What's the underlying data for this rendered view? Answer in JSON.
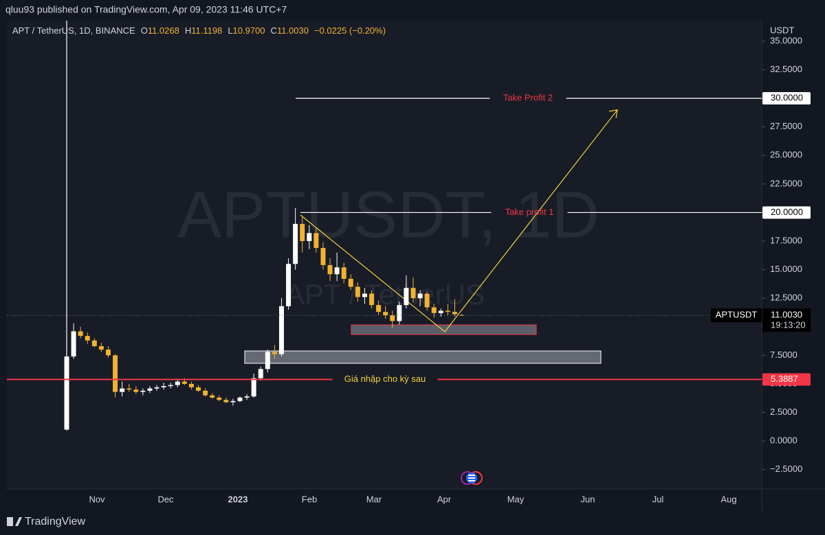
{
  "header": {
    "publisher": "qluu93 published on TradingView.com, Apr 09, 2023 11:46 UTC+7"
  },
  "chart_data": {
    "type": "candlestick",
    "symbol": "APT / TetherUS, 1D, BINANCE",
    "legend": {
      "o_label": "O",
      "o": {
        "value": 11.0268,
        "label": "11.0268"
      },
      "h_label": "H",
      "h": {
        "value": 11.1198,
        "label": "11.1198"
      },
      "l_label": "L",
      "l": {
        "value": 10.97,
        "label": "10.9700"
      },
      "c_label": "C",
      "c": {
        "value": 11.003,
        "label": "11.0030"
      },
      "change": "−0.0225 (−0.20%)"
    },
    "watermark": "APTUSDT, 1D",
    "watermark_sub": "APT / TetherUS",
    "y_unit": "USDT",
    "up_color": "#ffffff",
    "down_color": "#f0b232",
    "x_labels": [
      "Nov",
      "Dec",
      "2023",
      "Feb",
      "Mar",
      "Apr",
      "May",
      "Jun",
      "Jul",
      "Aug"
    ],
    "open": [
      1.0,
      7.4,
      9.6,
      9.2,
      8.8,
      8.3,
      8.0,
      7.5,
      4.3,
      4.6,
      4.5,
      4.3,
      4.4,
      4.6,
      4.7,
      4.8,
      4.9,
      5.2,
      5.0,
      4.7,
      4.4,
      4.0,
      3.8,
      3.6,
      3.4,
      3.5,
      3.8,
      3.9,
      5.5,
      6.3,
      7.8,
      7.6,
      11.8,
      15.5,
      19.0,
      17.5,
      18.2,
      16.9,
      15.4,
      14.6,
      15.2,
      14.2,
      13.5,
      12.6,
      12.9,
      11.9,
      11.3,
      11.0,
      10.5,
      11.9,
      13.4,
      12.5,
      12.9,
      11.7,
      11.2,
      11.4,
      11.3,
      11.0268
    ],
    "high": [
      8.0,
      10.3,
      10.0,
      9.5,
      9.0,
      8.6,
      8.3,
      7.6,
      5.2,
      5.0,
      4.8,
      4.6,
      4.8,
      4.9,
      5.1,
      5.1,
      5.4,
      5.5,
      5.2,
      4.9,
      4.6,
      4.2,
      4.0,
      3.8,
      3.7,
      3.9,
      4.1,
      5.9,
      6.5,
      8.0,
      8.4,
      12.5,
      16.0,
      20.4,
      19.6,
      18.9,
      18.6,
      17.4,
      16.0,
      16.5,
      15.6,
      14.6,
      13.9,
      13.4,
      13.2,
      12.3,
      11.8,
      11.4,
      12.2,
      14.5,
      14.3,
      13.2,
      13.1,
      12.0,
      11.6,
      12.0,
      12.4,
      11.1198
    ],
    "low": [
      0.9,
      7.2,
      9.0,
      8.5,
      8.2,
      7.8,
      7.3,
      3.8,
      3.9,
      4.3,
      4.1,
      4.0,
      4.2,
      4.4,
      4.5,
      4.6,
      4.7,
      4.9,
      4.5,
      4.3,
      3.9,
      3.7,
      3.5,
      3.3,
      3.1,
      3.4,
      3.6,
      3.8,
      5.3,
      6.0,
      7.2,
      7.4,
      11.5,
      15.0,
      16.5,
      16.8,
      16.5,
      15.0,
      14.0,
      14.0,
      13.8,
      13.2,
      12.2,
      12.0,
      11.6,
      11.0,
      10.7,
      9.9,
      10.2,
      11.6,
      12.1,
      11.8,
      11.4,
      10.8,
      10.9,
      11.0,
      10.9,
      10.97
    ],
    "close": [
      7.4,
      9.6,
      9.2,
      8.8,
      8.3,
      8.0,
      7.5,
      4.3,
      4.6,
      4.5,
      4.3,
      4.4,
      4.6,
      4.7,
      4.8,
      4.9,
      5.2,
      5.0,
      4.7,
      4.4,
      4.0,
      3.8,
      3.6,
      3.4,
      3.5,
      3.8,
      3.9,
      5.5,
      6.3,
      7.8,
      7.6,
      11.8,
      15.5,
      19.0,
      17.5,
      18.2,
      16.9,
      15.4,
      14.6,
      15.2,
      14.2,
      13.5,
      12.6,
      12.9,
      11.9,
      11.3,
      11.0,
      10.5,
      11.9,
      13.4,
      12.5,
      12.9,
      11.7,
      11.2,
      11.4,
      11.3,
      11.1,
      11.003
    ],
    "ylim": [
      -4.2,
      36.8
    ],
    "yticks": [
      {
        "value": -2.5,
        "label": "−2.5000"
      },
      {
        "value": 0,
        "label": "0.0000"
      },
      {
        "value": 2.5,
        "label": "2.5000"
      },
      {
        "value": 5,
        "label": "5.0000"
      },
      {
        "value": 7.5,
        "label": "7.5000"
      },
      {
        "value": 10,
        "label": "10.0000"
      },
      {
        "value": 12.5,
        "label": "12.5000"
      },
      {
        "value": 15,
        "label": "15.0000"
      },
      {
        "value": 17.5,
        "label": "17.5000"
      },
      {
        "value": 20,
        "label": "20.0000"
      },
      {
        "value": 22.5,
        "label": "22.5000"
      },
      {
        "value": 25,
        "label": "25.0000"
      },
      {
        "value": 27.5,
        "label": "27.5000"
      },
      {
        "value": 30,
        "label": "30.0000"
      },
      {
        "value": 32.5,
        "label": "32.5000"
      },
      {
        "value": 35,
        "label": "35.0000"
      }
    ],
    "levels": [
      {
        "name": "Take Profit 2",
        "price": {
          "value": 30,
          "label": "30.0000"
        },
        "color": "#ffffff",
        "text_color": "#f23645",
        "box_color": "#ffffff",
        "box_text": "#000000"
      },
      {
        "name": "Take profit 1",
        "price": {
          "value": 20,
          "label": "20.0000"
        },
        "color": "#ffffff",
        "text_color": "#f23645",
        "box_color": "#ffffff",
        "box_text": "#000000"
      },
      {
        "name": "Giá nhập cho kỳ sau",
        "price": {
          "value": 5.3887,
          "label": "5.3887"
        },
        "color": "#f23645",
        "text_color": "#f0d43a",
        "box_color": "#f23645",
        "box_text": "#ffffff"
      }
    ],
    "last_price": {
      "symbol": "APTUSDT",
      "price": {
        "value": 11.003,
        "label": "11.0030"
      },
      "countdown": "19:13:20"
    }
  },
  "footer": {
    "brand": "TradingView"
  }
}
